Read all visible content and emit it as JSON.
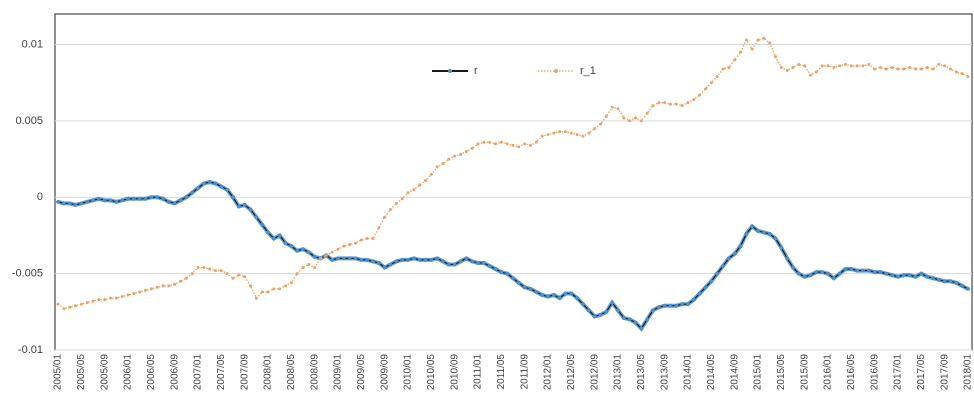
{
  "chart_data": {
    "type": "line",
    "categories": [
      "2005/01",
      null,
      null,
      null,
      "2005/05",
      null,
      null,
      null,
      "2005/09",
      null,
      null,
      null,
      "2006/01",
      null,
      null,
      null,
      "2006/05",
      null,
      null,
      null,
      "2006/09",
      null,
      null,
      null,
      "2007/01",
      null,
      null,
      null,
      "2007/05",
      null,
      null,
      null,
      "2007/09",
      null,
      null,
      null,
      "2008/01",
      null,
      null,
      null,
      "2008/05",
      null,
      null,
      null,
      "2008/09",
      null,
      null,
      null,
      "2009/01",
      null,
      null,
      null,
      "2009/05",
      null,
      null,
      null,
      "2009/09",
      null,
      null,
      null,
      "2010/01",
      null,
      null,
      null,
      "2010/05",
      null,
      null,
      null,
      "2010/09",
      null,
      null,
      null,
      "2011/01",
      null,
      null,
      null,
      "2011/05",
      null,
      null,
      null,
      "2011/09",
      null,
      null,
      null,
      "2012/01",
      null,
      null,
      null,
      "2012/05",
      null,
      null,
      null,
      "2012/09",
      null,
      null,
      null,
      "2013/01",
      null,
      null,
      null,
      "2013/05",
      null,
      null,
      null,
      "2013/09",
      null,
      null,
      null,
      "2014/01",
      null,
      null,
      null,
      "2014/05",
      null,
      null,
      null,
      "2014/09",
      null,
      null,
      null,
      "2015/01",
      null,
      null,
      null,
      "2015/05",
      null,
      null,
      null,
      "2015/09",
      null,
      null,
      null,
      "2016/01",
      null,
      null,
      null,
      "2016/05",
      null,
      null,
      null,
      "2016/09",
      null,
      null,
      null,
      "2017/01",
      null,
      null,
      null,
      "2017/05",
      null,
      null,
      null,
      "2017/09",
      null,
      null,
      null,
      "2018/01"
    ],
    "series": [
      {
        "name": "r",
        "color": "#4a8fd0",
        "line_color": "#1a1a1a",
        "values": [
          -0.0003,
          -0.0004,
          -0.0004,
          -0.0005,
          -0.0004,
          -0.0003,
          -0.0002,
          -0.0001,
          -0.0002,
          -0.0002,
          -0.0003,
          -0.0002,
          -0.0001,
          -0.0001,
          -0.0001,
          -0.0001,
          0.0,
          0.0,
          -0.0001,
          -0.0003,
          -0.0004,
          -0.0002,
          0.0,
          0.0003,
          0.0006,
          0.0009,
          0.001,
          0.0009,
          0.0007,
          0.0005,
          0.0,
          -0.0006,
          -0.0005,
          -0.0008,
          -0.0013,
          -0.0018,
          -0.0023,
          -0.0027,
          -0.0025,
          -0.003,
          -0.0032,
          -0.0035,
          -0.0034,
          -0.0036,
          -0.0039,
          -0.004,
          -0.0038,
          -0.0041,
          -0.004,
          -0.004,
          -0.004,
          -0.004,
          -0.0041,
          -0.0041,
          -0.0042,
          -0.0043,
          -0.0046,
          -0.0044,
          -0.0042,
          -0.0041,
          -0.0041,
          -0.004,
          -0.0041,
          -0.0041,
          -0.0041,
          -0.004,
          -0.0042,
          -0.0044,
          -0.0044,
          -0.0042,
          -0.004,
          -0.0042,
          -0.0043,
          -0.0043,
          -0.0045,
          -0.0047,
          -0.0049,
          -0.005,
          -0.0053,
          -0.0056,
          -0.0059,
          -0.006,
          -0.0062,
          -0.0064,
          -0.0065,
          -0.0064,
          -0.0066,
          -0.0063,
          -0.0063,
          -0.0066,
          -0.007,
          -0.0074,
          -0.0078,
          -0.0077,
          -0.0075,
          -0.0069,
          -0.0074,
          -0.0079,
          -0.008,
          -0.0082,
          -0.0086,
          -0.008,
          -0.0074,
          -0.0072,
          -0.0071,
          -0.0071,
          -0.0071,
          -0.007,
          -0.007,
          -0.0067,
          -0.0063,
          -0.0059,
          -0.0055,
          -0.005,
          -0.0045,
          -0.004,
          -0.0037,
          -0.0032,
          -0.0024,
          -0.0019,
          -0.0022,
          -0.0023,
          -0.0024,
          -0.0027,
          -0.0033,
          -0.004,
          -0.0046,
          -0.005,
          -0.0052,
          -0.0051,
          -0.0049,
          -0.0049,
          -0.005,
          -0.0053,
          -0.005,
          -0.0047,
          -0.0047,
          -0.0048,
          -0.0048,
          -0.0048,
          -0.0049,
          -0.0049,
          -0.005,
          -0.0051,
          -0.0052,
          -0.0051,
          -0.0051,
          -0.0052,
          -0.005,
          -0.0052,
          -0.0053,
          -0.0054,
          -0.0055,
          -0.0055,
          -0.0056,
          -0.0058,
          -0.006
        ]
      },
      {
        "name": "r_1",
        "color": "#f0a060",
        "line_color": "#f0a060",
        "dashed": true,
        "values": [
          -0.007,
          -0.0073,
          -0.0072,
          -0.0071,
          -0.007,
          -0.0069,
          -0.0068,
          -0.0067,
          -0.0067,
          -0.0066,
          -0.0066,
          -0.0065,
          -0.0064,
          -0.0063,
          -0.0062,
          -0.0061,
          -0.006,
          -0.0059,
          -0.0058,
          -0.0058,
          -0.0057,
          -0.0055,
          -0.0053,
          -0.005,
          -0.0046,
          -0.0046,
          -0.0047,
          -0.0048,
          -0.0048,
          -0.005,
          -0.0053,
          -0.0051,
          -0.0052,
          -0.0058,
          -0.0066,
          -0.0062,
          -0.0062,
          -0.006,
          -0.006,
          -0.0058,
          -0.0056,
          -0.005,
          -0.0046,
          -0.0044,
          -0.0046,
          -0.004,
          -0.0038,
          -0.0036,
          -0.0034,
          -0.0032,
          -0.0031,
          -0.003,
          -0.0028,
          -0.0027,
          -0.0027,
          -0.002,
          -0.0013,
          -0.0008,
          -0.0004,
          -0.0001,
          0.0003,
          0.0005,
          0.0008,
          0.0011,
          0.0015,
          0.002,
          0.0022,
          0.0025,
          0.0027,
          0.0028,
          0.003,
          0.0032,
          0.0035,
          0.0036,
          0.0036,
          0.0035,
          0.0036,
          0.0035,
          0.0034,
          0.0033,
          0.0035,
          0.0034,
          0.0036,
          0.004,
          0.0041,
          0.0042,
          0.0043,
          0.0043,
          0.0042,
          0.0041,
          0.004,
          0.0042,
          0.0045,
          0.0048,
          0.0053,
          0.0059,
          0.0058,
          0.0052,
          0.005,
          0.0052,
          0.005,
          0.0055,
          0.006,
          0.0062,
          0.0062,
          0.0061,
          0.0061,
          0.006,
          0.0062,
          0.0064,
          0.0067,
          0.0071,
          0.0075,
          0.0079,
          0.0084,
          0.0085,
          0.009,
          0.0095,
          0.0103,
          0.0097,
          0.0103,
          0.0104,
          0.0101,
          0.0092,
          0.0085,
          0.0083,
          0.0085,
          0.0087,
          0.0086,
          0.008,
          0.0082,
          0.0086,
          0.0086,
          0.0085,
          0.0086,
          0.0087,
          0.0086,
          0.0086,
          0.0086,
          0.0087,
          0.0084,
          0.0085,
          0.0084,
          0.0085,
          0.0084,
          0.0084,
          0.0085,
          0.0084,
          0.0084,
          0.0085,
          0.0084,
          0.0087,
          0.0086,
          0.0084,
          0.0082,
          0.0081,
          0.0079
        ]
      }
    ],
    "ylim": [
      -0.01,
      0.012
    ],
    "yticks": [
      0.01,
      0.005,
      0,
      -0.005,
      -0.01
    ],
    "grid": true,
    "legend": "top"
  }
}
